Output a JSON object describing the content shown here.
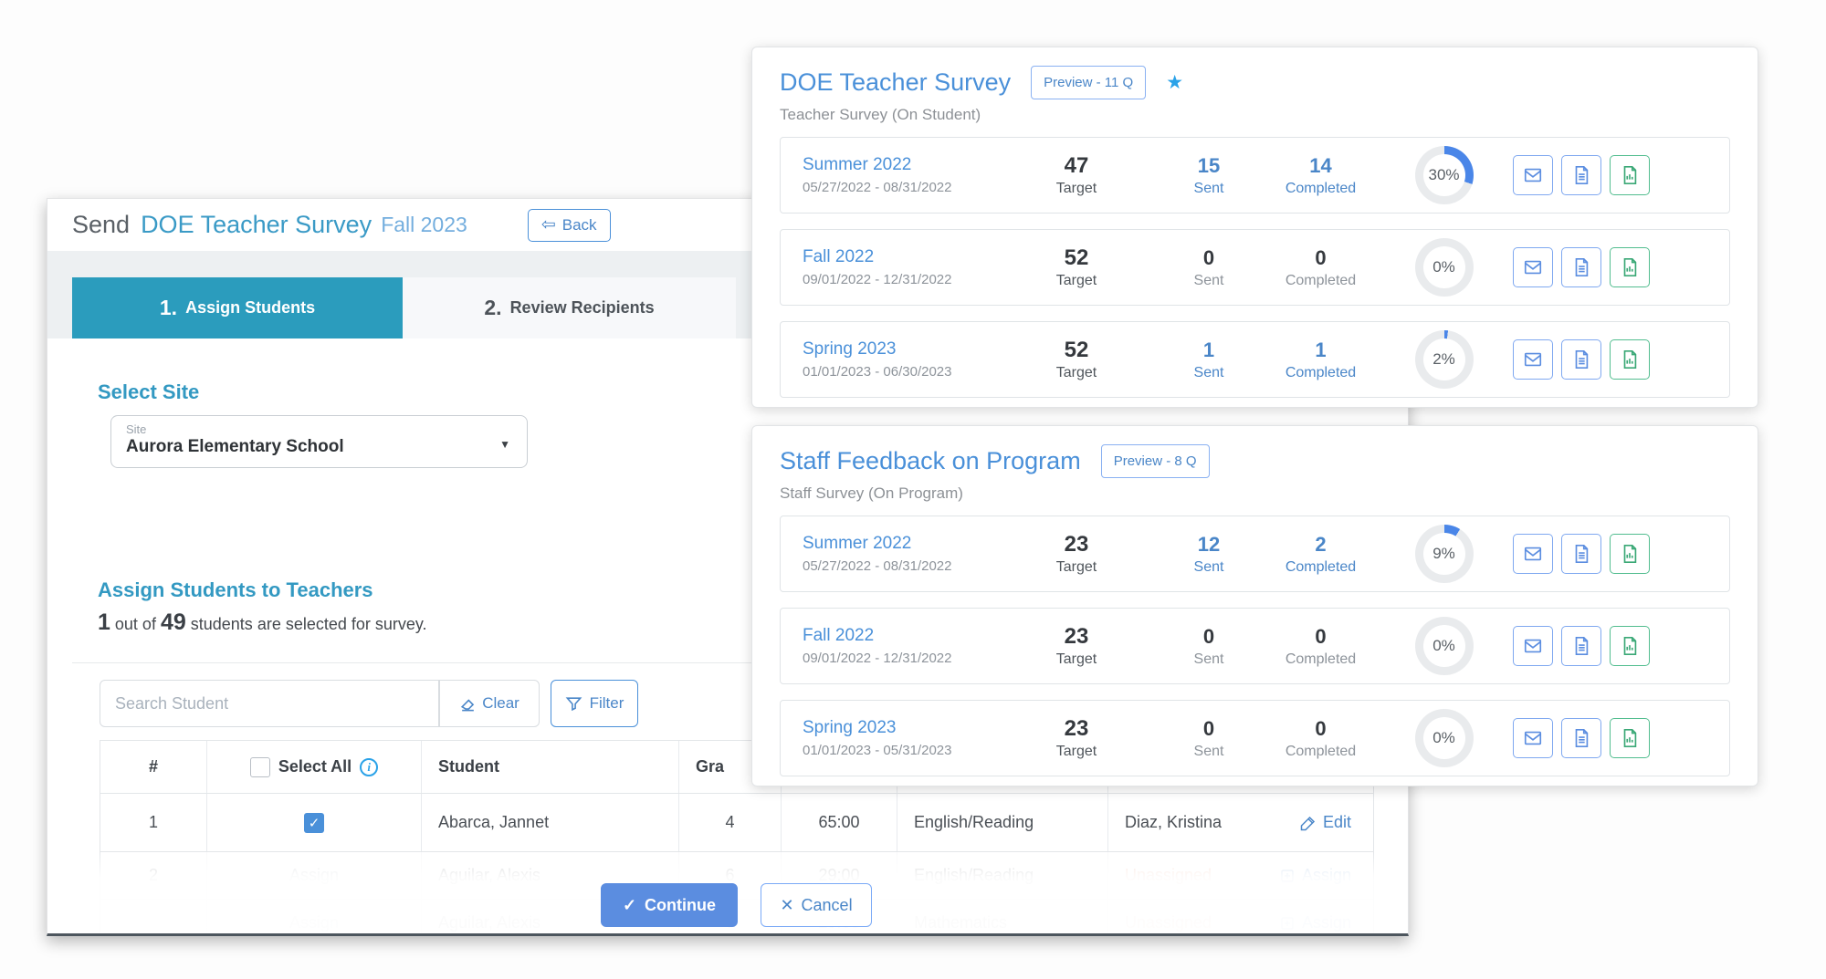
{
  "send_dialog": {
    "title_prefix": "Send",
    "survey_name": "DOE Teacher Survey",
    "term": "Fall 2023",
    "back_label": "Back",
    "tabs": [
      {
        "number": "1.",
        "label": "Assign Students",
        "active": true
      },
      {
        "number": "2.",
        "label": "Review Recipients",
        "active": false
      }
    ],
    "select_site": {
      "heading": "Select Site",
      "field_label": "Site",
      "field_value": "Aurora Elementary School"
    },
    "assign_section": {
      "heading": "Assign Students to Teachers",
      "selected_count": "1",
      "middle_text": " out of ",
      "total_count": "49",
      "end_text": " students are selected for survey."
    },
    "search": {
      "placeholder": "Search Student",
      "clear_label": "Clear",
      "filter_label": "Filter"
    },
    "table": {
      "headers": {
        "number": "#",
        "select_all": "Select All",
        "student": "Student",
        "grade_partial": "Gra"
      },
      "rows": [
        {
          "num": "1",
          "select": "checked",
          "select_label": "",
          "student": "Abarca, Jannet",
          "grade": "4",
          "minutes": "65:00",
          "subject": "English/Reading",
          "teacher": "Diaz, Kristina",
          "teacher_unassigned": false,
          "action": "Edit",
          "faded": false
        },
        {
          "num": "2",
          "select": "assign",
          "select_label": "Assign",
          "student": "Aguilar, Alexis",
          "grade": "6",
          "minutes": "29:00",
          "subject": "English/Reading",
          "teacher": "Unassigned",
          "teacher_unassigned": true,
          "action": "Assign",
          "faded": true
        },
        {
          "num": "",
          "select": "assign",
          "select_label": "Assign",
          "student": "Aguilar, Alexis",
          "grade": "6",
          "minutes": "29:00",
          "subject": "Mathematics",
          "teacher": "Unassigned",
          "teacher_unassigned": true,
          "action": "Assign",
          "faded": true
        }
      ]
    },
    "footer": {
      "continue_label": "Continue",
      "cancel_label": "Cancel"
    }
  },
  "surveys_panel": {
    "stat_labels": {
      "target": "Target",
      "sent": "Sent",
      "completed": "Completed"
    },
    "cards": [
      {
        "title": "DOE Teacher Survey",
        "preview_label": "Preview - 11 Q",
        "starred": true,
        "subtitle": "Teacher Survey (On Student)",
        "rows": [
          {
            "season": "Summer 2022",
            "dates": "05/27/2022 - 08/31/2022",
            "target": 47,
            "sent": 15,
            "completed": 14,
            "percent": 30
          },
          {
            "season": "Fall 2022",
            "dates": "09/01/2022 - 12/31/2022",
            "target": 52,
            "sent": 0,
            "completed": 0,
            "percent": 0
          },
          {
            "season": "Spring 2023",
            "dates": "01/01/2023 - 06/30/2023",
            "target": 52,
            "sent": 1,
            "completed": 1,
            "percent": 2
          }
        ]
      },
      {
        "title": "Staff Feedback on Program",
        "preview_label": "Preview - 8 Q",
        "starred": false,
        "subtitle": "Staff Survey (On Program)",
        "rows": [
          {
            "season": "Summer 2022",
            "dates": "05/27/2022 - 08/31/2022",
            "target": 23,
            "sent": 12,
            "completed": 2,
            "percent": 9
          },
          {
            "season": "Fall 2022",
            "dates": "09/01/2022 - 12/31/2022",
            "target": 23,
            "sent": 0,
            "completed": 0,
            "percent": 0
          },
          {
            "season": "Spring 2023",
            "dates": "01/01/2023 - 05/31/2023",
            "target": 23,
            "sent": 0,
            "completed": 0,
            "percent": 0
          }
        ]
      }
    ]
  },
  "colors": {
    "teal_tab": "#2b9cbd",
    "teal_heading": "#3399c2",
    "title_blue": "#4a90d9",
    "link_blue": "#4a86c8",
    "star_blue": "#2aa2e8",
    "donut_blue": "#4a86e8",
    "green_accent": "#3aa876",
    "unassigned_orange": "#e98b67"
  }
}
